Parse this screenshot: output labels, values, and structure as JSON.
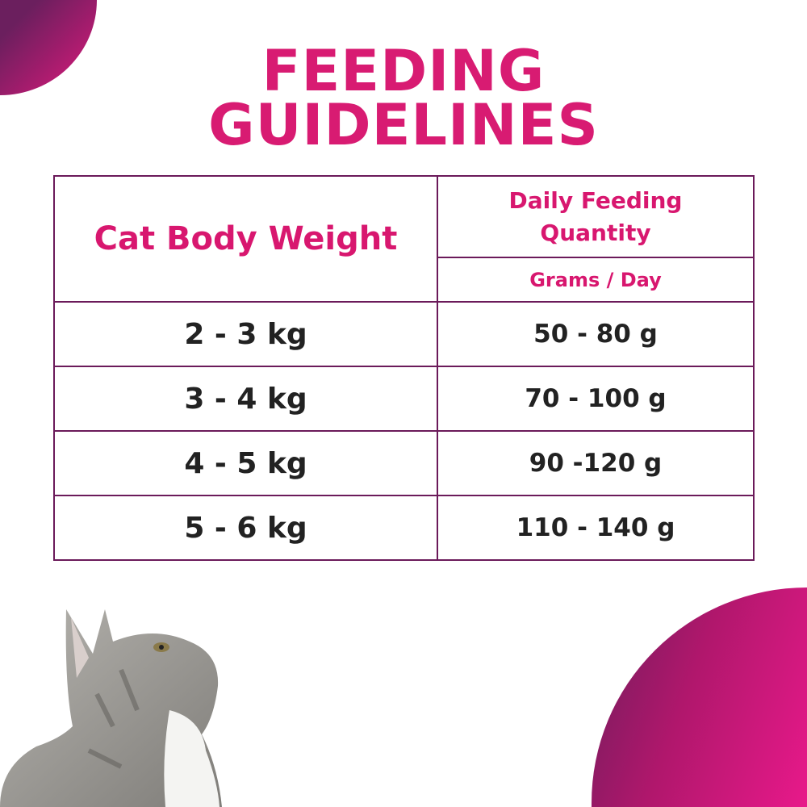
{
  "title": {
    "line1": "FEEDING",
    "line2": "GUIDELINES"
  },
  "table": {
    "col1_header": "Cat Body Weight",
    "col2_header": "Daily Feeding Quantity",
    "col2_unit": "Grams / Day",
    "rows": [
      {
        "weight": "2 - 3 kg",
        "quantity": "50 - 80 g"
      },
      {
        "weight": "3 - 4 kg",
        "quantity": "70 - 100 g"
      },
      {
        "weight": "4 - 5 kg",
        "quantity": "90 -120 g"
      },
      {
        "weight": "5 - 6 kg",
        "quantity": "110 - 140 g"
      }
    ]
  },
  "colors": {
    "accent": "#d81b72",
    "border": "#6b1a5a",
    "gradient_dark": "#6b1f5e",
    "gradient_light": "#e8198a"
  }
}
